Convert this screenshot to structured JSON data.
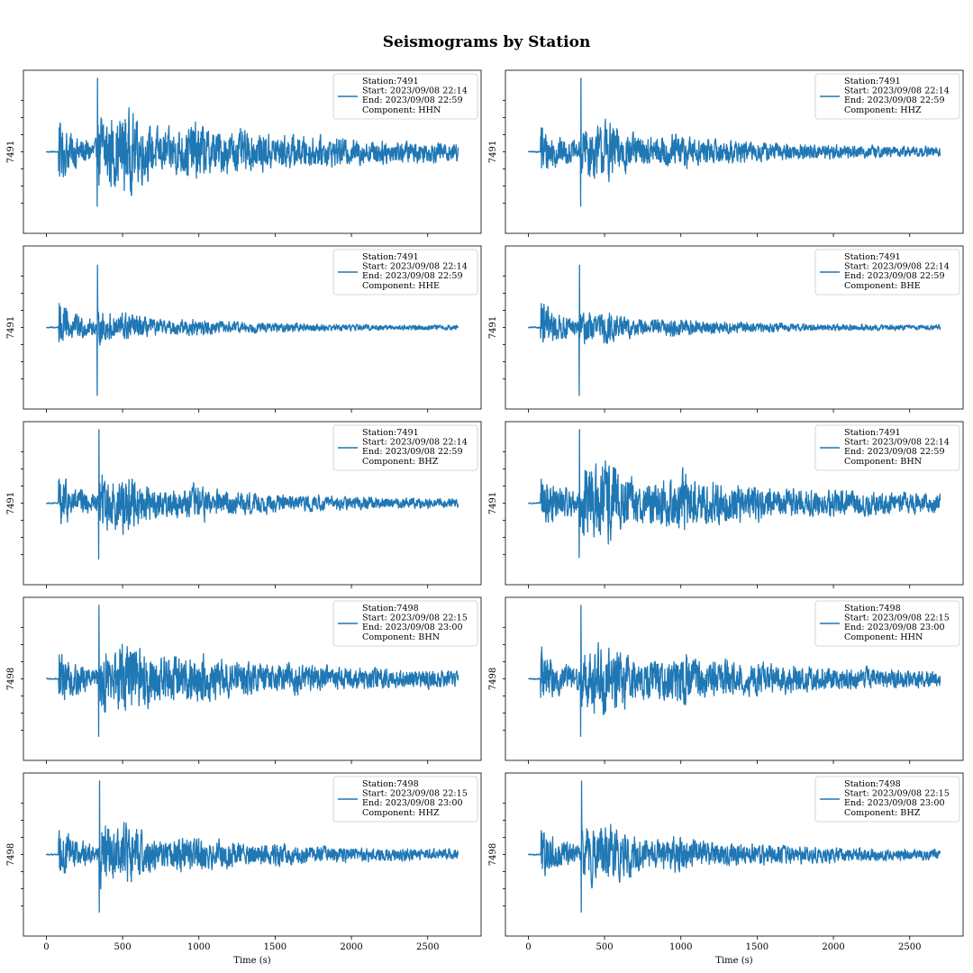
{
  "title": "Seismograms by Station",
  "line_color": "#1f77b4",
  "chart_data": [
    {
      "type": "line",
      "ylabel": "7491",
      "xlabel": "",
      "xlim": [
        -150,
        2850
      ],
      "xticks": [
        0,
        500,
        1000,
        1500,
        2000,
        2500
      ],
      "legend": {
        "position": "top-right",
        "lines": [
          "Station:7491",
          "Start: 2023/09/08 22:14",
          "End: 2023/09/08 22:59",
          "Component: HHN"
        ]
      },
      "series": [
        {
          "x_start": 0,
          "x_end": 2700,
          "p_onset": 80,
          "s_onset": 335,
          "peak_pos": 0.92,
          "peak_neg": -0.68,
          "coda": 0.55,
          "decay": 1100,
          "noise": 0.09
        }
      ]
    },
    {
      "type": "line",
      "ylabel": "7491",
      "xlabel": "",
      "xlim": [
        -150,
        2850
      ],
      "xticks": [
        0,
        500,
        1000,
        1500,
        2000,
        2500
      ],
      "legend": {
        "position": "top-right",
        "lines": [
          "Station:7491",
          "Start: 2023/09/08 22:14",
          "End: 2023/09/08 22:59",
          "Component: HHZ"
        ]
      },
      "series": [
        {
          "x_start": 0,
          "x_end": 2700,
          "p_onset": 80,
          "s_onset": 345,
          "peak_pos": 0.92,
          "peak_neg": -0.68,
          "coda": 0.42,
          "decay": 800,
          "noise": 0.06
        }
      ]
    },
    {
      "type": "line",
      "ylabel": "7491",
      "xlabel": "",
      "xlim": [
        -150,
        2850
      ],
      "xticks": [
        0,
        500,
        1000,
        1500,
        2000,
        2500
      ],
      "legend": {
        "position": "top-right",
        "lines": [
          "Station:7491",
          "Start: 2023/09/08 22:14",
          "End: 2023/09/08 22:59",
          "Component: HHE"
        ]
      },
      "series": [
        {
          "x_start": 0,
          "x_end": 2700,
          "p_onset": 80,
          "s_onset": 335,
          "peak_pos": 0.78,
          "peak_neg": -0.85,
          "coda": 0.22,
          "decay": 700,
          "noise": 0.03
        }
      ]
    },
    {
      "type": "line",
      "ylabel": "7491",
      "xlabel": "",
      "xlim": [
        -150,
        2850
      ],
      "xticks": [
        0,
        500,
        1000,
        1500,
        2000,
        2500
      ],
      "legend": {
        "position": "top-right",
        "lines": [
          "Station:7491",
          "Start: 2023/09/08 22:14",
          "End: 2023/09/08 22:59",
          "Component: BHE"
        ]
      },
      "series": [
        {
          "x_start": 0,
          "x_end": 2700,
          "p_onset": 80,
          "s_onset": 335,
          "peak_pos": 0.78,
          "peak_neg": -0.85,
          "coda": 0.24,
          "decay": 700,
          "noise": 0.03
        }
      ]
    },
    {
      "type": "line",
      "ylabel": "7491",
      "xlabel": "",
      "xlim": [
        -150,
        2850
      ],
      "xticks": [
        0,
        500,
        1000,
        1500,
        2000,
        2500
      ],
      "legend": {
        "position": "top-right",
        "lines": [
          "Station:7491",
          "Start: 2023/09/08 22:14",
          "End: 2023/09/08 22:59",
          "Component: BHZ"
        ]
      },
      "series": [
        {
          "x_start": 0,
          "x_end": 2700,
          "p_onset": 80,
          "s_onset": 345,
          "peak_pos": 0.92,
          "peak_neg": -0.7,
          "coda": 0.42,
          "decay": 800,
          "noise": 0.05
        }
      ]
    },
    {
      "type": "line",
      "ylabel": "7491",
      "xlabel": "",
      "xlim": [
        -150,
        2850
      ],
      "xticks": [
        0,
        500,
        1000,
        1500,
        2000,
        2500
      ],
      "legend": {
        "position": "top-right",
        "lines": [
          "Station:7491",
          "Start: 2023/09/08 22:14",
          "End: 2023/09/08 22:59",
          "Component: BHN"
        ]
      },
      "series": [
        {
          "x_start": 0,
          "x_end": 2700,
          "p_onset": 80,
          "s_onset": 335,
          "peak_pos": 0.92,
          "peak_neg": -0.68,
          "coda": 0.55,
          "decay": 1100,
          "noise": 0.09
        }
      ]
    },
    {
      "type": "line",
      "ylabel": "7498",
      "xlabel": "",
      "xlim": [
        -150,
        2850
      ],
      "xticks": [
        0,
        500,
        1000,
        1500,
        2000,
        2500
      ],
      "legend": {
        "position": "top-right",
        "lines": [
          "Station:7498",
          "Start: 2023/09/08 22:15",
          "End: 2023/09/08 23:00",
          "Component: BHN"
        ]
      },
      "series": [
        {
          "x_start": 0,
          "x_end": 2700,
          "p_onset": 80,
          "s_onset": 345,
          "peak_pos": 0.92,
          "peak_neg": -0.72,
          "coda": 0.52,
          "decay": 1100,
          "noise": 0.07
        }
      ]
    },
    {
      "type": "line",
      "ylabel": "7498",
      "xlabel": "",
      "xlim": [
        -150,
        2850
      ],
      "xticks": [
        0,
        500,
        1000,
        1500,
        2000,
        2500
      ],
      "legend": {
        "position": "top-right",
        "lines": [
          "Station:7498",
          "Start: 2023/09/08 22:15",
          "End: 2023/09/08 23:00",
          "Component: HHN"
        ]
      },
      "series": [
        {
          "x_start": 0,
          "x_end": 2700,
          "p_onset": 80,
          "s_onset": 345,
          "peak_pos": 0.92,
          "peak_neg": -0.72,
          "coda": 0.52,
          "decay": 1100,
          "noise": 0.07
        }
      ]
    },
    {
      "type": "line",
      "ylabel": "7498",
      "xlabel": "Time (s)",
      "xlim": [
        -150,
        2850
      ],
      "xticks": [
        0,
        500,
        1000,
        1500,
        2000,
        2500
      ],
      "legend": {
        "position": "top-right",
        "lines": [
          "Station:7498",
          "Start: 2023/09/08 22:15",
          "End: 2023/09/08 23:00",
          "Component: HHZ"
        ]
      },
      "series": [
        {
          "x_start": 0,
          "x_end": 2700,
          "p_onset": 80,
          "s_onset": 350,
          "peak_pos": 0.92,
          "peak_neg": -0.72,
          "coda": 0.42,
          "decay": 900,
          "noise": 0.05
        }
      ]
    },
    {
      "type": "line",
      "ylabel": "7498",
      "xlabel": "Time (s)",
      "xlim": [
        -150,
        2850
      ],
      "xticks": [
        0,
        500,
        1000,
        1500,
        2000,
        2500
      ],
      "legend": {
        "position": "top-right",
        "lines": [
          "Station:7498",
          "Start: 2023/09/08 22:15",
          "End: 2023/09/08 23:00",
          "Component: BHZ"
        ]
      },
      "series": [
        {
          "x_start": 0,
          "x_end": 2700,
          "p_onset": 80,
          "s_onset": 350,
          "peak_pos": 0.92,
          "peak_neg": -0.72,
          "coda": 0.42,
          "decay": 900,
          "noise": 0.05
        }
      ]
    }
  ]
}
